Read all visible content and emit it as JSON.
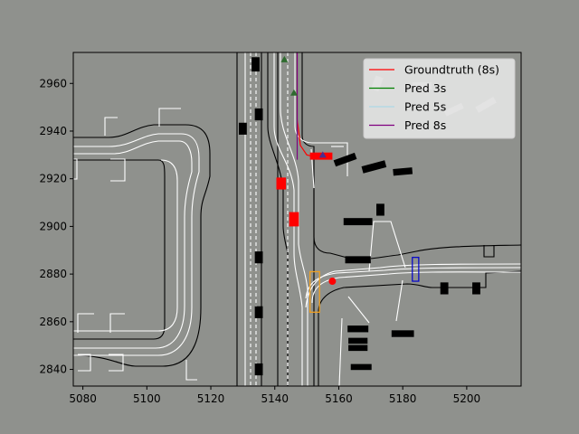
{
  "chart_data": {
    "type": "scatter",
    "title": "",
    "xlabel": "",
    "ylabel": "",
    "xlim": [
      5077,
      5217
    ],
    "ylim": [
      2833,
      2973
    ],
    "x_ticks": [
      5080,
      5100,
      5120,
      5140,
      5160,
      5180,
      5200
    ],
    "y_ticks": [
      2840,
      2860,
      2880,
      2900,
      2920,
      2940,
      2960
    ],
    "x_tick_labels": [
      "5080",
      "5100",
      "5120",
      "5140",
      "5160",
      "5180",
      "5200"
    ],
    "y_tick_labels": [
      "2840",
      "2860",
      "2880",
      "2900",
      "2920",
      "2940",
      "2960"
    ],
    "grid": false,
    "legend_position": "top-right",
    "legend": [
      {
        "label": "Groundtruth (8s)",
        "color": "#ff0000"
      },
      {
        "label": "Pred 3s",
        "color": "#008000"
      },
      {
        "label": "Pred 5s",
        "color": "#add8e6"
      },
      {
        "label": "Pred 8s",
        "color": "#800080"
      }
    ],
    "series": [
      {
        "name": "Groundtruth (8s)",
        "color": "#ff0000",
        "x": [
          5153,
          5150,
          5148,
          5147,
          5147
        ],
        "y": [
          2929,
          2930,
          2934,
          2945,
          2973
        ]
      },
      {
        "name": "Pred 3s",
        "color": "#008000",
        "x": [
          5147,
          5147
        ],
        "y": [
          2928,
          2973
        ]
      },
      {
        "name": "Pred 5s",
        "color": "#add8e6",
        "x": [
          5147,
          5147
        ],
        "y": [
          2928,
          2973
        ]
      },
      {
        "name": "Pred 8s",
        "color": "#800080",
        "x": [
          5147,
          5147
        ],
        "y": [
          2928,
          2973
        ]
      }
    ],
    "ego_point": {
      "x": 5158,
      "y": 2877,
      "color": "#ff0000"
    },
    "pred_markers": [
      {
        "x": 5143,
        "y": 2970,
        "color": "#2e6b2e"
      },
      {
        "x": 5146,
        "y": 2956,
        "color": "#2e6b2e"
      },
      {
        "x": 5155,
        "y": 2930,
        "color": "#4b2e8f"
      }
    ],
    "red_vehicles": [
      {
        "cx": 5154.5,
        "cy": 2929.5,
        "w": 7,
        "h": 3
      },
      {
        "cx": 5142,
        "cy": 2918,
        "w": 3,
        "h": 5
      },
      {
        "cx": 5146,
        "cy": 2903,
        "w": 3,
        "h": 6
      }
    ],
    "black_vehicles": [
      {
        "cx": 5134,
        "cy": 2968,
        "w": 2.5,
        "h": 6
      },
      {
        "cx": 5130,
        "cy": 2941,
        "w": 2.5,
        "h": 5
      },
      {
        "cx": 5135,
        "cy": 2947,
        "w": 2.5,
        "h": 5
      },
      {
        "cx": 5135,
        "cy": 2887,
        "w": 2.5,
        "h": 5
      },
      {
        "cx": 5135,
        "cy": 2864,
        "w": 2.5,
        "h": 5
      },
      {
        "cx": 5135,
        "cy": 2840,
        "w": 2.5,
        "h": 5
      },
      {
        "cx": 5162,
        "cy": 2928,
        "w": 7,
        "h": 2.8,
        "angle": -20
      },
      {
        "cx": 5171,
        "cy": 2925,
        "w": 7.5,
        "h": 3,
        "angle": -15
      },
      {
        "cx": 5180,
        "cy": 2923,
        "w": 6,
        "h": 2.8,
        "angle": -5
      },
      {
        "cx": 5166,
        "cy": 2902,
        "w": 9,
        "h": 3
      },
      {
        "cx": 5173,
        "cy": 2907,
        "w": 2.5,
        "h": 5
      },
      {
        "cx": 5166,
        "cy": 2886,
        "w": 8,
        "h": 3
      },
      {
        "cx": 5166,
        "cy": 2857,
        "w": 6.5,
        "h": 2.8
      },
      {
        "cx": 5166,
        "cy": 2852,
        "w": 6,
        "h": 2.5
      },
      {
        "cx": 5166,
        "cy": 2849,
        "w": 6,
        "h": 2.5
      },
      {
        "cx": 5167,
        "cy": 2841,
        "w": 6.5,
        "h": 2.5
      },
      {
        "cx": 5180,
        "cy": 2855,
        "w": 7,
        "h": 2.8
      },
      {
        "cx": 5193,
        "cy": 2874,
        "w": 2.5,
        "h": 5
      },
      {
        "cx": 5203,
        "cy": 2874,
        "w": 2.5,
        "h": 5
      }
    ],
    "gray_vehicles": [
      {
        "cx": 5172,
        "cy": 2960,
        "w": 2.5,
        "h": 6,
        "angle": 20
      },
      {
        "cx": 5186,
        "cy": 2959,
        "w": 6,
        "h": 3
      },
      {
        "cx": 5196,
        "cy": 2949,
        "w": 6,
        "h": 2.5,
        "angle": -25
      },
      {
        "cx": 5206,
        "cy": 2951,
        "w": 6.5,
        "h": 2.8,
        "angle": -30
      }
    ],
    "orange_box": {
      "x0": 5151,
      "y0": 2864,
      "x1": 5154,
      "y1": 2881,
      "color": "#f0a020"
    },
    "blue_box": {
      "x0": 5183,
      "y0": 2877,
      "x1": 5185,
      "y1": 2887,
      "color": "#0000cd"
    }
  }
}
